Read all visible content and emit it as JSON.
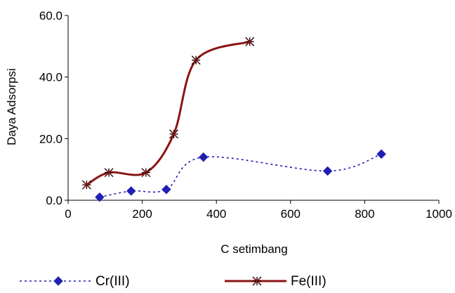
{
  "chart_data": {
    "type": "line",
    "title": "",
    "xlabel": "C setimbang",
    "ylabel": "Daya Adsorpsi",
    "xlim": [
      0,
      1000
    ],
    "ylim": [
      0,
      60
    ],
    "x_ticks": [
      "0",
      "200",
      "400",
      "600",
      "800",
      "1000"
    ],
    "y_ticks": [
      "0.0",
      "20.0",
      "40.0",
      "60.0"
    ],
    "x_tick_values": [
      0,
      200,
      400,
      600,
      800,
      1000
    ],
    "y_tick_values": [
      0,
      20,
      40,
      60
    ],
    "grid": false,
    "legend_position": "bottom",
    "series": [
      {
        "name": "Cr(III)",
        "color": "#1f1fb4",
        "line_style": "dotted",
        "marker": "diamond",
        "x": [
          85,
          170,
          265,
          365,
          700,
          845
        ],
        "y": [
          1.0,
          3.0,
          3.5,
          14.0,
          9.5,
          15.0
        ]
      },
      {
        "name": "Fe(III)",
        "color": "#8b1414",
        "line_style": "solid",
        "marker": "star",
        "x": [
          50,
          110,
          210,
          285,
          345,
          490
        ],
        "y": [
          5.0,
          9.0,
          9.0,
          21.5,
          45.5,
          51.5
        ]
      }
    ]
  }
}
